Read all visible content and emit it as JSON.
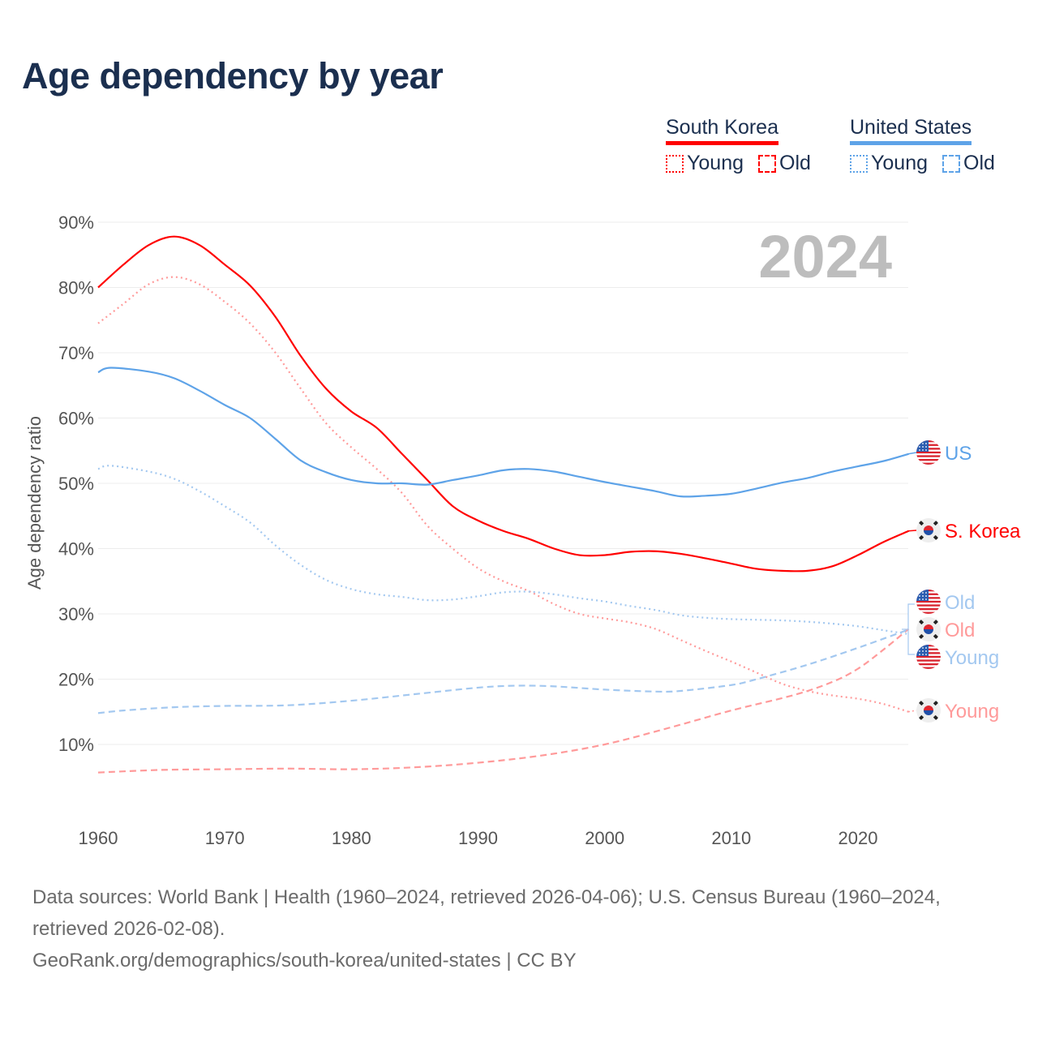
{
  "title": "Age dependency by year",
  "legend": {
    "groups": [
      {
        "name": "South Korea",
        "color": "#ff0000",
        "items": [
          "Young",
          "Old"
        ]
      },
      {
        "name": "United States",
        "color": "#5ea3e8",
        "items": [
          "Young",
          "Old"
        ]
      }
    ]
  },
  "chart_data": {
    "type": "line",
    "title": "Age dependency by year",
    "ylabel": "Age dependency ratio",
    "xlabel": "",
    "xlim": [
      1960,
      2024
    ],
    "ylim": [
      0,
      90
    ],
    "x_ticks": [
      "1960",
      "1970",
      "1980",
      "1990",
      "2000",
      "2010",
      "2020"
    ],
    "y_ticks": [
      "10%",
      "20%",
      "30%",
      "40%",
      "50%",
      "60%",
      "70%",
      "80%",
      "90%"
    ],
    "year_display": "2024",
    "grid": true,
    "series": [
      {
        "name": "S. Korea",
        "label": "S. Korea",
        "flag": "kr",
        "color": "#ff0000",
        "style": "solid",
        "x": [
          1960,
          1962,
          1964,
          1966,
          1968,
          1970,
          1972,
          1974,
          1976,
          1978,
          1980,
          1982,
          1984,
          1986,
          1988,
          1990,
          1992,
          1994,
          1996,
          1998,
          2000,
          2002,
          2004,
          2006,
          2008,
          2010,
          2012,
          2014,
          2016,
          2018,
          2020,
          2022,
          2024
        ],
        "y": [
          80,
          83.5,
          86.5,
          87.8,
          86.5,
          83.5,
          80.3,
          75.5,
          69.5,
          64.5,
          61,
          58.5,
          54.5,
          50.5,
          46.5,
          44.3,
          42.7,
          41.5,
          40,
          39,
          39,
          39.5,
          39.6,
          39.2,
          38.5,
          37.7,
          36.9,
          36.6,
          36.6,
          37.3,
          39,
          41,
          42.7
        ]
      },
      {
        "name": "S. Korea Young",
        "label": "Young",
        "flag": "kr",
        "color": "#ff9a9a",
        "style": "dotted",
        "x": [
          1960,
          1962,
          1964,
          1966,
          1968,
          1970,
          1972,
          1974,
          1976,
          1978,
          1980,
          1982,
          1984,
          1986,
          1988,
          1990,
          1992,
          1994,
          1996,
          1998,
          2000,
          2002,
          2004,
          2006,
          2008,
          2010,
          2012,
          2014,
          2016,
          2018,
          2020,
          2022,
          2024
        ],
        "y": [
          74.5,
          77.5,
          80.5,
          81.6,
          80.5,
          77.8,
          74.5,
          70,
          64.5,
          59.2,
          55.5,
          52.2,
          48.5,
          43.5,
          40,
          37,
          35,
          33.5,
          31.5,
          30,
          29.3,
          28.7,
          27.7,
          26,
          24.3,
          22.7,
          21,
          19.3,
          18.2,
          17.5,
          17,
          16.2,
          15
        ]
      },
      {
        "name": "S. Korea Old",
        "label": "Old",
        "flag": "kr",
        "color": "#ff9a9a",
        "style": "dashed",
        "x": [
          1960,
          1965,
          1970,
          1975,
          1980,
          1985,
          1990,
          1995,
          2000,
          2005,
          2010,
          2015,
          2018,
          2020,
          2022,
          2024
        ],
        "y": [
          5.7,
          6.1,
          6.2,
          6.3,
          6.2,
          6.5,
          7.2,
          8.3,
          10,
          12.5,
          15.2,
          17.6,
          19.6,
          21.6,
          24.5,
          27.7
        ]
      },
      {
        "name": "US",
        "label": "US",
        "flag": "us",
        "color": "#5ea3e8",
        "style": "solid",
        "x": [
          1960,
          1961,
          1964,
          1966,
          1968,
          1970,
          1972,
          1974,
          1976,
          1978,
          1980,
          1982,
          1984,
          1986,
          1988,
          1990,
          1992,
          1994,
          1996,
          1998,
          2000,
          2002,
          2004,
          2006,
          2008,
          2010,
          2012,
          2014,
          2016,
          2018,
          2020,
          2022,
          2024
        ],
        "y": [
          67,
          67.7,
          67.1,
          66.1,
          64.2,
          62,
          60,
          56.8,
          53.5,
          51.7,
          50.5,
          50,
          50,
          49.8,
          50.5,
          51.2,
          52,
          52.2,
          51.8,
          51,
          50.2,
          49.5,
          48.8,
          48,
          48.1,
          48.4,
          49.2,
          50.1,
          50.8,
          51.8,
          52.6,
          53.4,
          54.5
        ]
      },
      {
        "name": "US Young",
        "label": "Young",
        "flag": "us",
        "color": "#a3c8f0",
        "style": "dotted",
        "x": [
          1960,
          1961,
          1964,
          1966,
          1968,
          1970,
          1972,
          1974,
          1976,
          1978,
          1980,
          1982,
          1984,
          1986,
          1988,
          1990,
          1992,
          1994,
          1996,
          1998,
          2000,
          2002,
          2004,
          2006,
          2008,
          2010,
          2012,
          2014,
          2016,
          2018,
          2020,
          2022,
          2024
        ],
        "y": [
          52.2,
          52.7,
          51.8,
          50.7,
          48.8,
          46.5,
          44,
          40.5,
          37.5,
          35.2,
          33.8,
          33,
          32.6,
          32.1,
          32.2,
          32.7,
          33.3,
          33.4,
          33,
          32.4,
          31.9,
          31.2,
          30.6,
          29.8,
          29.4,
          29.2,
          29.1,
          29,
          28.8,
          28.5,
          28.1,
          27.5,
          26.9
        ]
      },
      {
        "name": "US Old",
        "label": "Old",
        "flag": "us",
        "color": "#a3c8f0",
        "style": "dashed",
        "x": [
          1960,
          1962,
          1966,
          1970,
          1975,
          1980,
          1985,
          1990,
          1993,
          1996,
          2000,
          2004,
          2006,
          2010,
          2012,
          2016,
          2020,
          2024
        ],
        "y": [
          14.8,
          15.2,
          15.7,
          15.9,
          16,
          16.7,
          17.7,
          18.7,
          19,
          18.9,
          18.4,
          18.1,
          18.2,
          19.1,
          20,
          22.2,
          24.8,
          27.6
        ]
      }
    ]
  },
  "footer": {
    "line1": "Data sources: World Bank | Health (1960–2024, retrieved 2026-04-06); U.S. Census Bureau (1960–2024, retrieved 2026-02-08).",
    "line2": "GeoRank.org/demographics/south-korea/united-states | CC BY"
  }
}
